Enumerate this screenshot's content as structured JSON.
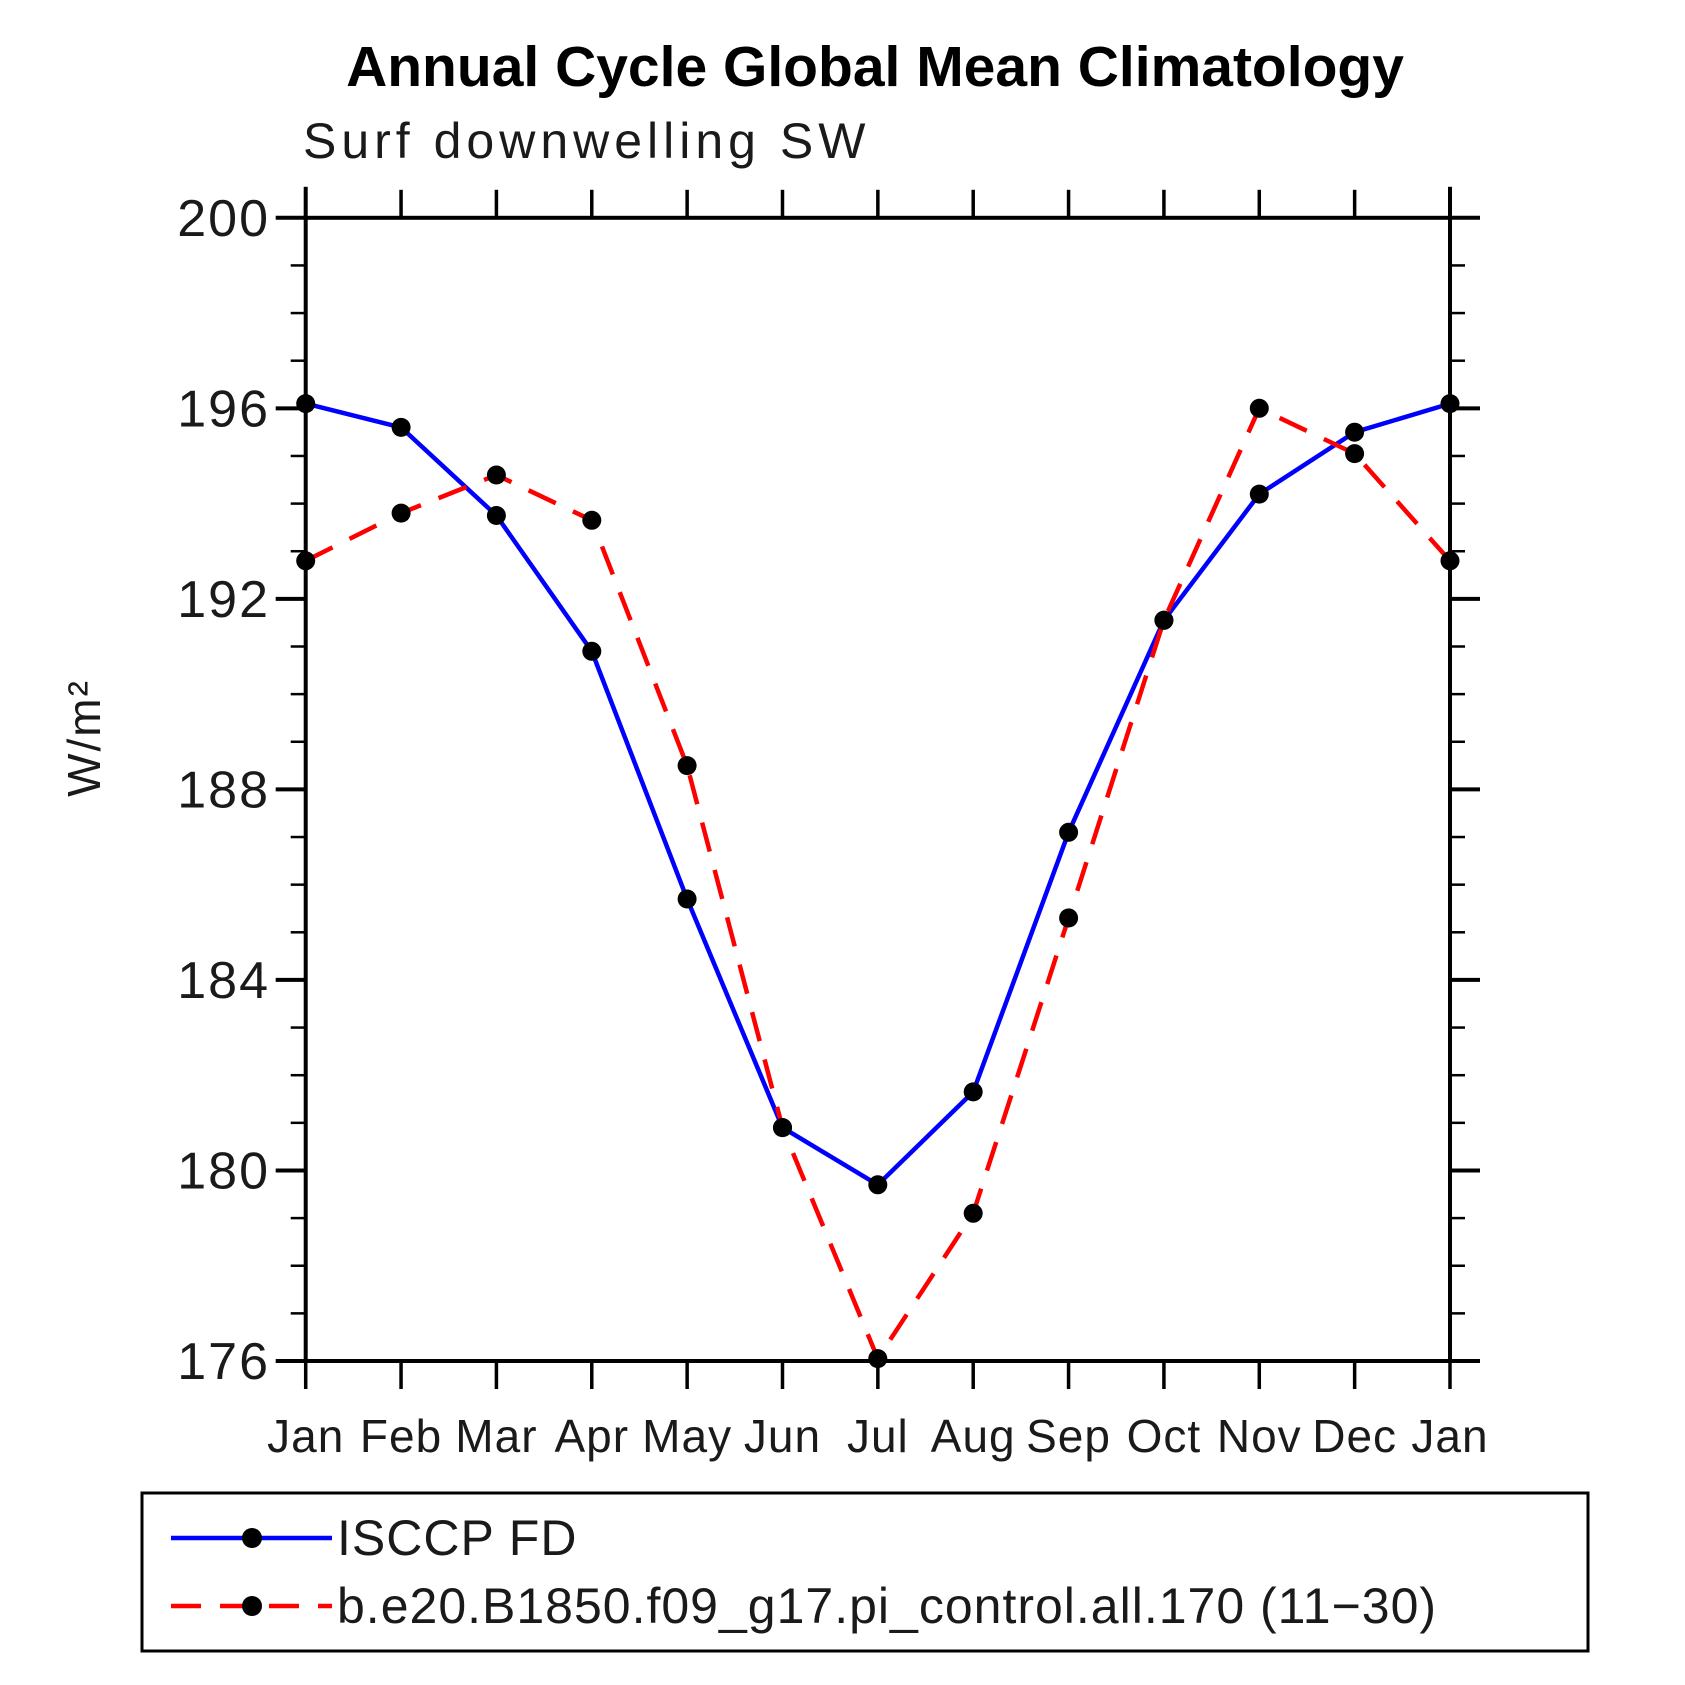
{
  "chart_data": {
    "type": "line",
    "title": "Annual Cycle Global Mean Climatology",
    "subtitle": "Surf downwelling SW",
    "ylabel": "W/m²",
    "x_categories": [
      "Jan",
      "Feb",
      "Mar",
      "Apr",
      "May",
      "Jun",
      "Jul",
      "Aug",
      "Sep",
      "Oct",
      "Nov",
      "Dec",
      "Jan"
    ],
    "ylim": [
      176,
      200
    ],
    "ytick_major_step": 4,
    "ytick_minor_step": 1,
    "grid": false,
    "legend_position": "bottom",
    "axis_color": "#000000",
    "series": [
      {
        "name": "ISCCP FD",
        "line_style": "solid",
        "color": "#0000ff",
        "marker": "circle",
        "marker_color": "#000000",
        "values": [
          196.1,
          195.6,
          193.75,
          190.9,
          185.7,
          180.9,
          179.7,
          181.65,
          187.1,
          191.55,
          194.2,
          195.5,
          196.1
        ]
      },
      {
        "name": "b.e20.B1850.f09_g17.pi_control.all.170 (11−30)",
        "line_style": "dashed",
        "color": "#ff0000",
        "marker": "circle",
        "marker_color": "#000000",
        "values": [
          192.8,
          193.8,
          194.6,
          193.65,
          188.5,
          180.9,
          176.05,
          179.1,
          185.3,
          191.55,
          196.0,
          195.05,
          192.8
        ]
      }
    ]
  }
}
